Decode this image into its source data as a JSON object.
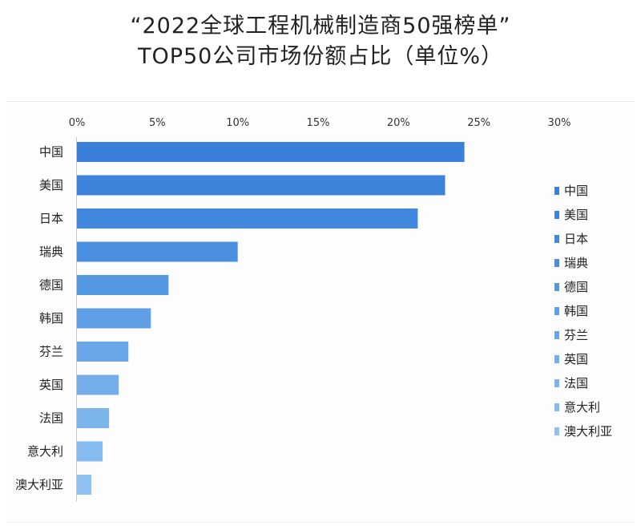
{
  "title": {
    "line1": "“2022全球工程机械制造商50强榜单”",
    "line2": "TOP50公司市场份额占比（单位%）"
  },
  "chart_data": {
    "type": "bar",
    "orientation": "horizontal",
    "categories": [
      "中国",
      "美国",
      "日本",
      "瑞典",
      "德国",
      "韩国",
      "芬兰",
      "英国",
      "法国",
      "意大利",
      "澳大利亚"
    ],
    "values": [
      24.1,
      22.9,
      21.2,
      10.0,
      5.7,
      4.6,
      3.2,
      2.6,
      2.0,
      1.6,
      0.9
    ],
    "xlim": [
      0,
      30
    ],
    "xticks": [
      0,
      5,
      10,
      15,
      20,
      25,
      30
    ],
    "xtick_labels": [
      "0%",
      "5%",
      "10%",
      "15%",
      "20%",
      "25%",
      "30%"
    ],
    "x_axis_position": "top",
    "grid": false,
    "legend": {
      "position": "right",
      "entries": [
        "中国",
        "美国",
        "日本",
        "瑞典",
        "德国",
        "韩国",
        "芬兰",
        "英国",
        "法国",
        "意大利",
        "澳大利亚"
      ]
    },
    "colors": [
      "#3a7fda",
      "#3d83dc",
      "#4288de",
      "#4a8ee0",
      "#5598e2",
      "#5e9fe5",
      "#69a7e8",
      "#73aeea",
      "#7cb4ec",
      "#86bbef",
      "#90c2f1"
    ]
  }
}
